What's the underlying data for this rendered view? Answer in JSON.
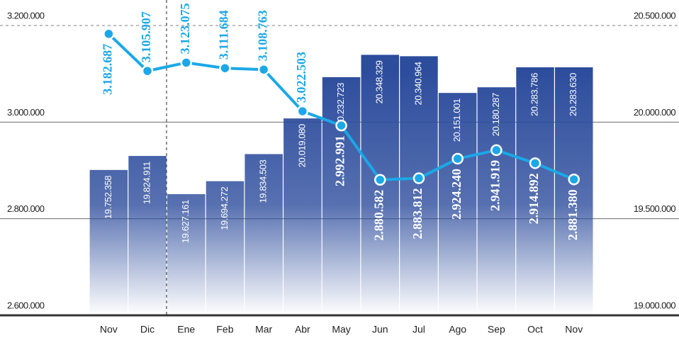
{
  "chart_data": {
    "type": "combo",
    "categories": [
      "Nov",
      "Dic",
      "Ene",
      "Feb",
      "Mar",
      "Abr",
      "May",
      "Jun",
      "Jul",
      "Ago",
      "Sep",
      "Oct",
      "Nov"
    ],
    "ylim": [
      2600000,
      3200000
    ],
    "yticks": [
      {
        "value": 2600000,
        "label": "2.600.000"
      },
      {
        "value": 2800000,
        "label": "2.800.000"
      },
      {
        "value": 3000000,
        "label": "3.000.000"
      },
      {
        "value": 3200000,
        "label": "3.200.000"
      }
    ],
    "y2lim": [
      19000000,
      20500000
    ],
    "y2ticks": [
      {
        "value": 19000000,
        "label": "19.000.000"
      },
      {
        "value": 19500000,
        "label": "19.500.000"
      },
      {
        "value": 20000000,
        "label": "20.000.000"
      },
      {
        "value": 20500000,
        "label": "20.500.000"
      }
    ],
    "grid": true,
    "series": [
      {
        "type": "bar",
        "axis": "y2",
        "color": "#2c4c9c",
        "values": [
          19752358,
          19824911,
          19627161,
          19694272,
          19834503,
          20019080,
          20232723,
          20348329,
          20340964,
          20151001,
          20180287,
          20283786,
          20283630
        ],
        "value_labels": [
          "19.752.358",
          "19.824.911",
          "19.627.161",
          "19.694.272",
          "19.834.503",
          "20.019.080",
          "20.232.723",
          "20.348.329",
          "20.340.964",
          "20.151.001",
          "20.180.287",
          "20.283.786",
          "20.283.630"
        ]
      },
      {
        "type": "line",
        "axis": "y",
        "color": "#1ba8e8",
        "values": [
          3182687,
          3105907,
          3123075,
          3111684,
          3108763,
          3022503,
          2992991,
          2880582,
          2883812,
          2924240,
          2941919,
          2914892,
          2881380
        ],
        "value_labels": [
          "3.182.687",
          "3.105.907",
          "3.123.075",
          "3.111.684",
          "3.108.763",
          "3.022.503",
          "2.992.991",
          "2.880.582",
          "2.883.812",
          "2.924.240",
          "2.941.919",
          "2.914.892",
          "2.881.380"
        ]
      }
    ]
  }
}
